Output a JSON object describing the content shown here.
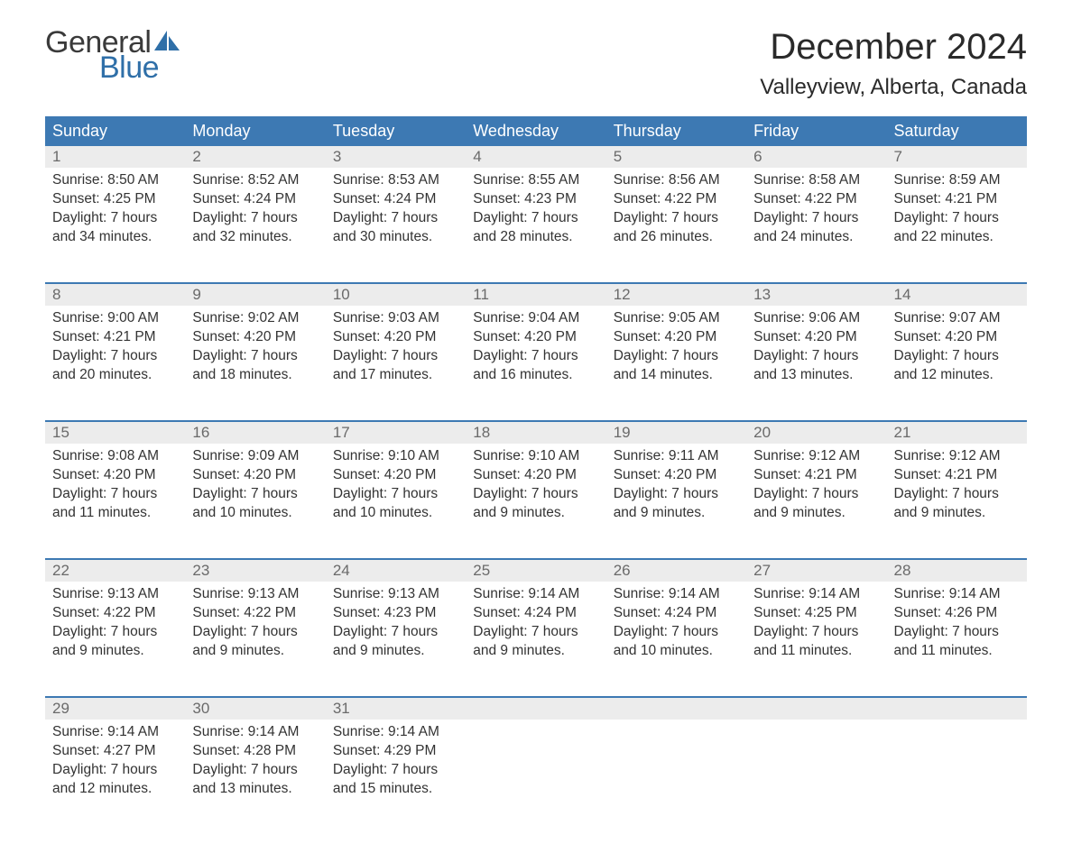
{
  "brand": {
    "word1": "General",
    "word2": "Blue",
    "word1_color": "#3a3a3a",
    "word2_color": "#2f6fa8",
    "sail_color": "#2f6fa8"
  },
  "title": "December 2024",
  "location": "Valleyview, Alberta, Canada",
  "colors": {
    "header_bg": "#3d79b3",
    "header_text": "#ffffff",
    "daynum_bg": "#ececec",
    "daynum_text": "#6a6a6a",
    "week_border": "#3d79b3",
    "body_text": "#333333",
    "page_bg": "#ffffff"
  },
  "fonts": {
    "title_pt": 40,
    "location_pt": 24,
    "dayheader_pt": 18,
    "daynum_pt": 17,
    "body_pt": 15.5
  },
  "day_headers": [
    "Sunday",
    "Monday",
    "Tuesday",
    "Wednesday",
    "Thursday",
    "Friday",
    "Saturday"
  ],
  "weeks": [
    [
      {
        "n": "1",
        "sunrise": "8:50 AM",
        "sunset": "4:25 PM",
        "daylight": "7 hours and 34 minutes."
      },
      {
        "n": "2",
        "sunrise": "8:52 AM",
        "sunset": "4:24 PM",
        "daylight": "7 hours and 32 minutes."
      },
      {
        "n": "3",
        "sunrise": "8:53 AM",
        "sunset": "4:24 PM",
        "daylight": "7 hours and 30 minutes."
      },
      {
        "n": "4",
        "sunrise": "8:55 AM",
        "sunset": "4:23 PM",
        "daylight": "7 hours and 28 minutes."
      },
      {
        "n": "5",
        "sunrise": "8:56 AM",
        "sunset": "4:22 PM",
        "daylight": "7 hours and 26 minutes."
      },
      {
        "n": "6",
        "sunrise": "8:58 AM",
        "sunset": "4:22 PM",
        "daylight": "7 hours and 24 minutes."
      },
      {
        "n": "7",
        "sunrise": "8:59 AM",
        "sunset": "4:21 PM",
        "daylight": "7 hours and 22 minutes."
      }
    ],
    [
      {
        "n": "8",
        "sunrise": "9:00 AM",
        "sunset": "4:21 PM",
        "daylight": "7 hours and 20 minutes."
      },
      {
        "n": "9",
        "sunrise": "9:02 AM",
        "sunset": "4:20 PM",
        "daylight": "7 hours and 18 minutes."
      },
      {
        "n": "10",
        "sunrise": "9:03 AM",
        "sunset": "4:20 PM",
        "daylight": "7 hours and 17 minutes."
      },
      {
        "n": "11",
        "sunrise": "9:04 AM",
        "sunset": "4:20 PM",
        "daylight": "7 hours and 16 minutes."
      },
      {
        "n": "12",
        "sunrise": "9:05 AM",
        "sunset": "4:20 PM",
        "daylight": "7 hours and 14 minutes."
      },
      {
        "n": "13",
        "sunrise": "9:06 AM",
        "sunset": "4:20 PM",
        "daylight": "7 hours and 13 minutes."
      },
      {
        "n": "14",
        "sunrise": "9:07 AM",
        "sunset": "4:20 PM",
        "daylight": "7 hours and 12 minutes."
      }
    ],
    [
      {
        "n": "15",
        "sunrise": "9:08 AM",
        "sunset": "4:20 PM",
        "daylight": "7 hours and 11 minutes."
      },
      {
        "n": "16",
        "sunrise": "9:09 AM",
        "sunset": "4:20 PM",
        "daylight": "7 hours and 10 minutes."
      },
      {
        "n": "17",
        "sunrise": "9:10 AM",
        "sunset": "4:20 PM",
        "daylight": "7 hours and 10 minutes."
      },
      {
        "n": "18",
        "sunrise": "9:10 AM",
        "sunset": "4:20 PM",
        "daylight": "7 hours and 9 minutes."
      },
      {
        "n": "19",
        "sunrise": "9:11 AM",
        "sunset": "4:20 PM",
        "daylight": "7 hours and 9 minutes."
      },
      {
        "n": "20",
        "sunrise": "9:12 AM",
        "sunset": "4:21 PM",
        "daylight": "7 hours and 9 minutes."
      },
      {
        "n": "21",
        "sunrise": "9:12 AM",
        "sunset": "4:21 PM",
        "daylight": "7 hours and 9 minutes."
      }
    ],
    [
      {
        "n": "22",
        "sunrise": "9:13 AM",
        "sunset": "4:22 PM",
        "daylight": "7 hours and 9 minutes."
      },
      {
        "n": "23",
        "sunrise": "9:13 AM",
        "sunset": "4:22 PM",
        "daylight": "7 hours and 9 minutes."
      },
      {
        "n": "24",
        "sunrise": "9:13 AM",
        "sunset": "4:23 PM",
        "daylight": "7 hours and 9 minutes."
      },
      {
        "n": "25",
        "sunrise": "9:14 AM",
        "sunset": "4:24 PM",
        "daylight": "7 hours and 9 minutes."
      },
      {
        "n": "26",
        "sunrise": "9:14 AM",
        "sunset": "4:24 PM",
        "daylight": "7 hours and 10 minutes."
      },
      {
        "n": "27",
        "sunrise": "9:14 AM",
        "sunset": "4:25 PM",
        "daylight": "7 hours and 11 minutes."
      },
      {
        "n": "28",
        "sunrise": "9:14 AM",
        "sunset": "4:26 PM",
        "daylight": "7 hours and 11 minutes."
      }
    ],
    [
      {
        "n": "29",
        "sunrise": "9:14 AM",
        "sunset": "4:27 PM",
        "daylight": "7 hours and 12 minutes."
      },
      {
        "n": "30",
        "sunrise": "9:14 AM",
        "sunset": "4:28 PM",
        "daylight": "7 hours and 13 minutes."
      },
      {
        "n": "31",
        "sunrise": "9:14 AM",
        "sunset": "4:29 PM",
        "daylight": "7 hours and 15 minutes."
      },
      null,
      null,
      null,
      null
    ]
  ],
  "labels": {
    "sunrise": "Sunrise:",
    "sunset": "Sunset:",
    "daylight": "Daylight:"
  }
}
